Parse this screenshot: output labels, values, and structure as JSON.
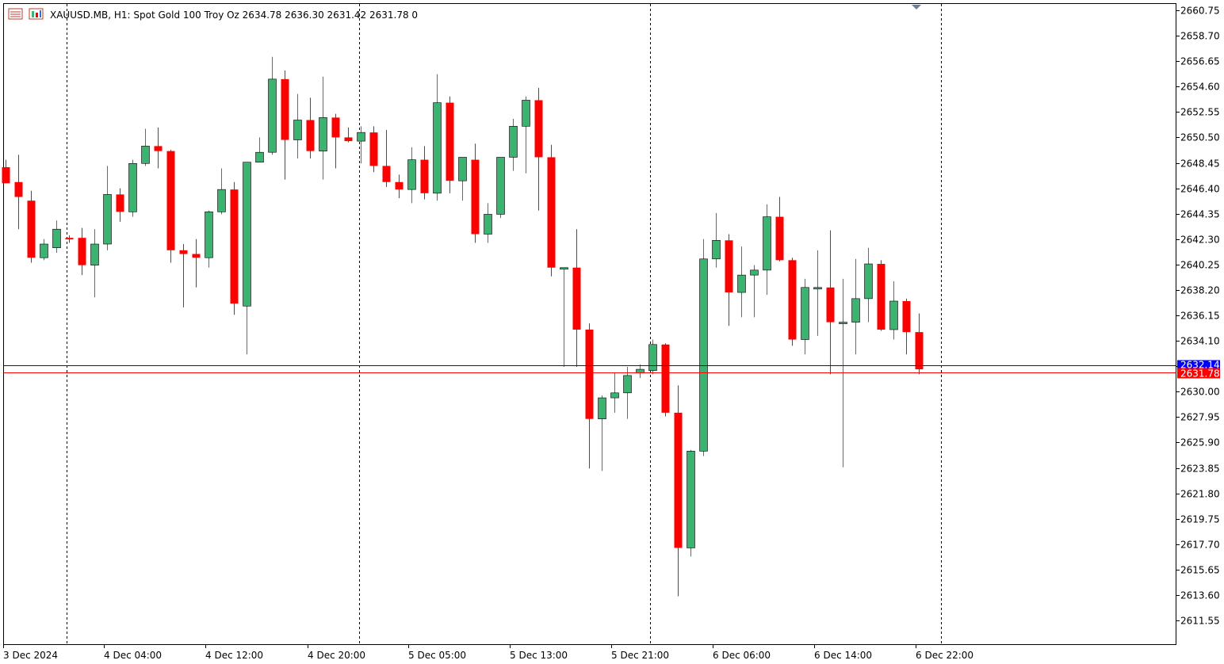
{
  "header": {
    "symbol_line": "XAUUSD.MB, H1:  Spot Gold 100 Troy Oz  2634.78 2636.30 2631.42 2631.78  0",
    "menu_icon": "list-icon",
    "chart_icon": "chart-type-icon"
  },
  "colors": {
    "bull": "#3cb371",
    "bear": "#ff0000",
    "outline": "#000000",
    "grid_vertical": "#000000",
    "ask_line": "#0000ff",
    "bid_line": "#ff0000",
    "background": "#ffffff"
  },
  "price_axis": {
    "ticks": [
      "2660.75",
      "2658.70",
      "2656.65",
      "2654.60",
      "2652.55",
      "2650.50",
      "2648.45",
      "2646.40",
      "2644.35",
      "2642.30",
      "2640.25",
      "2638.20",
      "2636.15",
      "2634.10",
      "2632.05",
      "2630.00",
      "2627.95",
      "2625.90",
      "2623.85",
      "2621.80",
      "2619.75",
      "2617.70",
      "2615.65",
      "2613.60",
      "2611.55"
    ],
    "ask_label": "2632.14",
    "bid_label": "2631.78"
  },
  "time_axis": {
    "labels": [
      "3 Dec 2024",
      "4 Dec 04:00",
      "4 Dec 12:00",
      "4 Dec 20:00",
      "5 Dec 05:00",
      "5 Dec 13:00",
      "5 Dec 21:00",
      "6 Dec 06:00",
      "6 Dec 14:00",
      "6 Dec 22:00"
    ]
  },
  "chart_data": {
    "type": "candlestick",
    "symbol": "XAUUSD.MB",
    "timeframe": "H1",
    "ylim": [
      2610.0,
      2661.5
    ],
    "grid": "vertical-dotted-separators",
    "ask": 2632.14,
    "bid": 2631.78,
    "candles": [
      {
        "o": 2648.1,
        "h": 2648.7,
        "l": 2646.9,
        "c": 2646.8
      },
      {
        "o": 2646.9,
        "h": 2649.1,
        "l": 2643.1,
        "c": 2645.7
      },
      {
        "o": 2645.4,
        "h": 2646.2,
        "l": 2640.4,
        "c": 2640.8
      },
      {
        "o": 2640.8,
        "h": 2642.3,
        "l": 2640.6,
        "c": 2641.9
      },
      {
        "o": 2641.6,
        "h": 2643.8,
        "l": 2641.2,
        "c": 2643.1
      },
      {
        "o": 2642.4,
        "h": 2642.6,
        "l": 2642.0,
        "c": 2642.3
      },
      {
        "o": 2642.4,
        "h": 2643.2,
        "l": 2639.4,
        "c": 2640.2
      },
      {
        "o": 2640.2,
        "h": 2643.1,
        "l": 2637.6,
        "c": 2641.9
      },
      {
        "o": 2641.9,
        "h": 2648.2,
        "l": 2641.4,
        "c": 2645.9
      },
      {
        "o": 2645.9,
        "h": 2646.4,
        "l": 2643.7,
        "c": 2644.5
      },
      {
        "o": 2644.5,
        "h": 2648.7,
        "l": 2644.1,
        "c": 2648.4
      },
      {
        "o": 2648.4,
        "h": 2651.2,
        "l": 2648.2,
        "c": 2649.8
      },
      {
        "o": 2649.8,
        "h": 2651.3,
        "l": 2648.0,
        "c": 2649.4
      },
      {
        "o": 2649.4,
        "h": 2649.5,
        "l": 2640.4,
        "c": 2641.4
      },
      {
        "o": 2641.4,
        "h": 2641.9,
        "l": 2636.8,
        "c": 2641.1
      },
      {
        "o": 2641.1,
        "h": 2642.3,
        "l": 2638.4,
        "c": 2640.8
      },
      {
        "o": 2640.8,
        "h": 2644.6,
        "l": 2640.0,
        "c": 2644.5
      },
      {
        "o": 2644.5,
        "h": 2648.0,
        "l": 2644.3,
        "c": 2646.3
      },
      {
        "o": 2646.3,
        "h": 2646.9,
        "l": 2636.2,
        "c": 2637.1
      },
      {
        "o": 2636.9,
        "h": 2648.5,
        "l": 2633.0,
        "c": 2648.5
      },
      {
        "o": 2648.5,
        "h": 2650.5,
        "l": 2648.5,
        "c": 2649.3
      },
      {
        "o": 2649.3,
        "h": 2657.0,
        "l": 2649.1,
        "c": 2655.2
      },
      {
        "o": 2655.2,
        "h": 2655.9,
        "l": 2647.1,
        "c": 2650.3
      },
      {
        "o": 2650.3,
        "h": 2654.0,
        "l": 2648.8,
        "c": 2651.9
      },
      {
        "o": 2651.9,
        "h": 2653.7,
        "l": 2648.8,
        "c": 2649.4
      },
      {
        "o": 2649.4,
        "h": 2655.4,
        "l": 2647.1,
        "c": 2652.1
      },
      {
        "o": 2652.1,
        "h": 2652.4,
        "l": 2648.0,
        "c": 2650.5
      },
      {
        "o": 2650.5,
        "h": 2651.3,
        "l": 2650.1,
        "c": 2650.2
      },
      {
        "o": 2650.2,
        "h": 2651.4,
        "l": 2648.4,
        "c": 2650.9
      },
      {
        "o": 2650.9,
        "h": 2651.4,
        "l": 2647.7,
        "c": 2648.2
      },
      {
        "o": 2648.2,
        "h": 2651.1,
        "l": 2646.5,
        "c": 2646.9
      },
      {
        "o": 2646.9,
        "h": 2647.5,
        "l": 2645.6,
        "c": 2646.3
      },
      {
        "o": 2646.3,
        "h": 2649.7,
        "l": 2645.2,
        "c": 2648.7
      },
      {
        "o": 2648.7,
        "h": 2649.8,
        "l": 2645.5,
        "c": 2646.0
      },
      {
        "o": 2646.0,
        "h": 2655.6,
        "l": 2645.4,
        "c": 2653.3
      },
      {
        "o": 2653.3,
        "h": 2653.8,
        "l": 2646.0,
        "c": 2647.0
      },
      {
        "o": 2647.0,
        "h": 2648.8,
        "l": 2645.4,
        "c": 2648.9
      },
      {
        "o": 2648.7,
        "h": 2650.0,
        "l": 2642.0,
        "c": 2642.7
      },
      {
        "o": 2642.7,
        "h": 2645.2,
        "l": 2642.0,
        "c": 2644.3
      },
      {
        "o": 2644.3,
        "h": 2648.8,
        "l": 2644.0,
        "c": 2648.9
      },
      {
        "o": 2648.9,
        "h": 2652.0,
        "l": 2647.8,
        "c": 2651.4
      },
      {
        "o": 2651.4,
        "h": 2653.8,
        "l": 2647.6,
        "c": 2653.5
      },
      {
        "o": 2653.5,
        "h": 2654.5,
        "l": 2644.6,
        "c": 2648.9
      },
      {
        "o": 2648.9,
        "h": 2649.9,
        "l": 2639.3,
        "c": 2640.0
      },
      {
        "o": 2640.0,
        "h": 2640.0,
        "l": 2632.0,
        "c": 2640.0
      },
      {
        "o": 2640.0,
        "h": 2643.1,
        "l": 2632.0,
        "c": 2635.0
      },
      {
        "o": 2635.0,
        "h": 2635.5,
        "l": 2623.8,
        "c": 2627.8
      },
      {
        "o": 2627.8,
        "h": 2629.7,
        "l": 2623.6,
        "c": 2629.5
      },
      {
        "o": 2629.5,
        "h": 2631.5,
        "l": 2628.3,
        "c": 2629.9
      },
      {
        "o": 2629.9,
        "h": 2632.0,
        "l": 2627.8,
        "c": 2631.3
      },
      {
        "o": 2631.5,
        "h": 2632.2,
        "l": 2631.1,
        "c": 2631.8
      },
      {
        "o": 2631.7,
        "h": 2634.2,
        "l": 2631.4,
        "c": 2633.8
      },
      {
        "o": 2633.8,
        "h": 2633.9,
        "l": 2628.0,
        "c": 2628.3
      },
      {
        "o": 2628.3,
        "h": 2630.5,
        "l": 2613.5,
        "c": 2617.4
      },
      {
        "o": 2617.4,
        "h": 2625.3,
        "l": 2616.7,
        "c": 2625.2
      },
      {
        "o": 2625.2,
        "h": 2642.3,
        "l": 2624.8,
        "c": 2640.7
      },
      {
        "o": 2640.7,
        "h": 2644.4,
        "l": 2640.0,
        "c": 2642.2
      },
      {
        "o": 2642.2,
        "h": 2642.7,
        "l": 2635.3,
        "c": 2638.0
      },
      {
        "o": 2638.0,
        "h": 2641.7,
        "l": 2636.0,
        "c": 2639.4
      },
      {
        "o": 2639.4,
        "h": 2640.2,
        "l": 2636.0,
        "c": 2639.8
      },
      {
        "o": 2639.8,
        "h": 2645.1,
        "l": 2637.8,
        "c": 2644.1
      },
      {
        "o": 2644.1,
        "h": 2645.7,
        "l": 2640.5,
        "c": 2640.6
      },
      {
        "o": 2640.6,
        "h": 2640.8,
        "l": 2633.7,
        "c": 2634.2
      },
      {
        "o": 2634.2,
        "h": 2639.1,
        "l": 2633.0,
        "c": 2638.4
      },
      {
        "o": 2638.4,
        "h": 2641.4,
        "l": 2634.5,
        "c": 2638.4
      },
      {
        "o": 2638.4,
        "h": 2643.0,
        "l": 2631.4,
        "c": 2635.6
      },
      {
        "o": 2635.5,
        "h": 2639.1,
        "l": 2623.9,
        "c": 2635.6
      },
      {
        "o": 2635.6,
        "h": 2640.7,
        "l": 2633.0,
        "c": 2637.5
      },
      {
        "o": 2637.5,
        "h": 2641.6,
        "l": 2635.6,
        "c": 2640.3
      },
      {
        "o": 2640.3,
        "h": 2640.6,
        "l": 2634.9,
        "c": 2635.0
      },
      {
        "o": 2635.0,
        "h": 2638.9,
        "l": 2634.2,
        "c": 2637.3
      },
      {
        "o": 2637.3,
        "h": 2637.5,
        "l": 2633.0,
        "c": 2634.8
      },
      {
        "o": 2634.8,
        "h": 2636.3,
        "l": 2631.4,
        "c": 2631.8
      }
    ]
  }
}
